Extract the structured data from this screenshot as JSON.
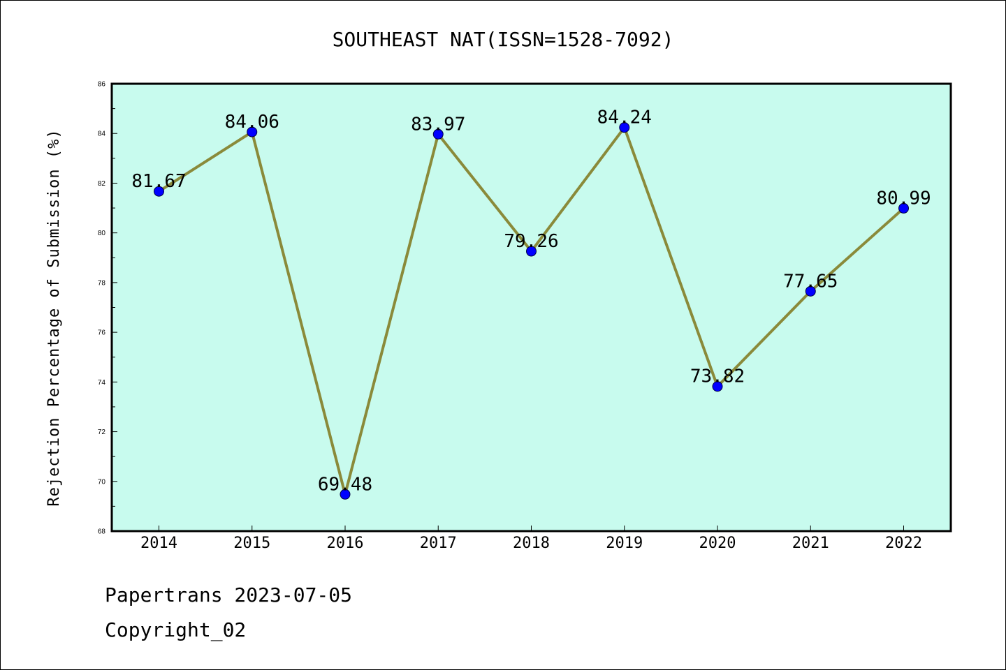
{
  "chart_data": {
    "type": "line",
    "title": "SOUTHEAST NAT(ISSN=1528-7092)",
    "xlabel": "",
    "ylabel": "Rejection Percentage of Submission (%)",
    "categories": [
      "2014",
      "2015",
      "2016",
      "2017",
      "2018",
      "2019",
      "2020",
      "2021",
      "2022"
    ],
    "values": [
      81.67,
      84.06,
      69.48,
      83.97,
      79.26,
      84.24,
      73.82,
      77.65,
      80.99
    ],
    "data_labels": [
      "81.67",
      "84.06",
      "69.48",
      "83.97",
      "79.26",
      "84.24",
      "73.82",
      "77.65",
      "80.99"
    ],
    "ylim": [
      68,
      86
    ],
    "yticks": [
      "68",
      "70",
      "72",
      "74",
      "76",
      "78",
      "80",
      "82",
      "84",
      "86"
    ],
    "grid": false,
    "colors": {
      "plot_background": "#c8fbee",
      "line": "#8a8a3a",
      "marker": "#0000ff"
    }
  },
  "footer": {
    "line1": "Papertrans 2023-07-05",
    "line2": "Copyright_02"
  }
}
